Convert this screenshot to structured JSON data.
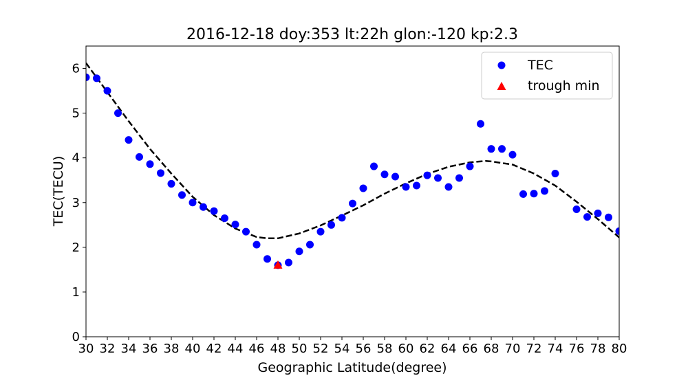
{
  "chart_data": {
    "type": "scatter",
    "title": "2016-12-18  doy:353  lt:22h  glon:-120  kp:2.3",
    "xlabel": "Geographic Latitude(degree)",
    "ylabel": "TEC(TECU)",
    "xlim": [
      30,
      80
    ],
    "ylim": [
      0,
      6.5
    ],
    "xticks": [
      30,
      32,
      34,
      36,
      38,
      40,
      42,
      44,
      46,
      48,
      50,
      52,
      54,
      56,
      58,
      60,
      62,
      64,
      66,
      68,
      70,
      72,
      74,
      76,
      78,
      80
    ],
    "yticks": [
      0,
      1,
      2,
      3,
      4,
      5,
      6
    ],
    "grid": false,
    "legend_position": "top-right",
    "colors": {
      "tec": "#0000ff",
      "trough": "#ff0000",
      "fit": "#000000"
    },
    "series": [
      {
        "name": "TEC",
        "marker": "circle",
        "x": [
          30,
          31,
          32,
          33,
          34,
          35,
          36,
          37,
          38,
          39,
          40,
          41,
          42,
          43,
          44,
          45,
          46,
          47,
          48,
          49,
          50,
          51,
          52,
          53,
          54,
          55,
          56,
          57,
          58,
          59,
          60,
          61,
          62,
          63,
          64,
          65,
          66,
          67,
          68,
          69,
          70,
          71,
          72,
          73,
          74,
          76,
          77,
          78,
          79,
          80
        ],
        "y": [
          5.8,
          5.78,
          5.5,
          5.0,
          4.4,
          4.02,
          3.86,
          3.66,
          3.42,
          3.17,
          3.0,
          2.9,
          2.81,
          2.65,
          2.51,
          2.35,
          2.06,
          1.74,
          1.6,
          1.66,
          1.91,
          2.06,
          2.35,
          2.5,
          2.66,
          2.98,
          3.32,
          3.81,
          3.63,
          3.58,
          3.35,
          3.38,
          3.61,
          3.55,
          3.35,
          3.55,
          3.81,
          4.76,
          4.2,
          4.2,
          4.07,
          3.19,
          3.2,
          3.26,
          3.65,
          2.85,
          2.68,
          2.76,
          2.67,
          2.36
        ]
      },
      {
        "name": "trough min",
        "marker": "triangle",
        "x": [
          48
        ],
        "y": [
          1.6
        ]
      }
    ],
    "fit_curve": {
      "style": "dashed",
      "x": [
        30,
        32,
        34,
        36,
        38,
        40,
        42,
        44,
        46,
        47,
        48,
        50,
        52,
        54,
        56,
        58,
        60,
        62,
        64,
        66,
        67.5,
        68,
        70,
        72,
        74,
        76,
        78,
        80
      ],
      "y": [
        6.12,
        5.47,
        4.82,
        4.2,
        3.65,
        3.13,
        2.72,
        2.42,
        2.23,
        2.2,
        2.2,
        2.31,
        2.49,
        2.71,
        2.94,
        3.2,
        3.43,
        3.64,
        3.8,
        3.9,
        3.93,
        3.92,
        3.85,
        3.65,
        3.38,
        3.02,
        2.63,
        2.22
      ]
    }
  }
}
